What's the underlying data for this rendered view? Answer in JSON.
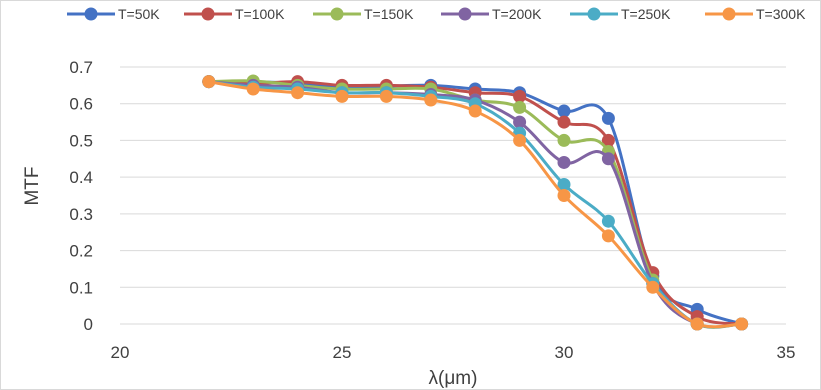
{
  "chart_data": {
    "type": "scatter",
    "xlabel": "λ(μm)",
    "ylabel": "MTF",
    "xlim": [
      20,
      35
    ],
    "ylim": [
      0,
      0.7
    ],
    "xticks": [
      20,
      25,
      30,
      35
    ],
    "yticks": [
      0,
      0.1,
      0.2,
      0.3,
      0.4,
      0.5,
      0.6,
      0.7
    ],
    "ytick_labels": [
      "0",
      "0.1",
      "0.2",
      "0.3",
      "0.4",
      "0.5",
      "0.6",
      "0.7"
    ],
    "xtick_labels": [
      "20",
      "25",
      "30",
      "35"
    ],
    "grid": "horizontal",
    "legend_position": "top",
    "x": [
      22,
      23,
      24,
      25,
      26,
      27,
      28,
      29,
      30,
      31,
      32,
      33,
      34
    ],
    "series": [
      {
        "name": "T=50K",
        "color": "#4472c4",
        "values": [
          0.66,
          0.66,
          0.655,
          0.645,
          0.648,
          0.65,
          0.64,
          0.63,
          0.58,
          0.56,
          0.13,
          0.04,
          0.0
        ]
      },
      {
        "name": "T=100K",
        "color": "#c0504d",
        "values": [
          0.66,
          0.655,
          0.66,
          0.65,
          0.65,
          0.645,
          0.63,
          0.62,
          0.55,
          0.5,
          0.14,
          0.02,
          0.0
        ]
      },
      {
        "name": "T=150K",
        "color": "#9bbb59",
        "values": [
          0.66,
          0.662,
          0.65,
          0.64,
          0.64,
          0.64,
          0.61,
          0.59,
          0.5,
          0.47,
          0.12,
          0.0,
          0.0
        ]
      },
      {
        "name": "T=200K",
        "color": "#8064a2",
        "values": [
          0.66,
          0.65,
          0.645,
          0.63,
          0.63,
          0.625,
          0.61,
          0.55,
          0.44,
          0.45,
          0.11,
          0.0,
          0.0
        ]
      },
      {
        "name": "T=250K",
        "color": "#4bacc6",
        "values": [
          0.66,
          0.645,
          0.64,
          0.63,
          0.63,
          0.62,
          0.6,
          0.52,
          0.38,
          0.28,
          0.11,
          0.0,
          0.0
        ]
      },
      {
        "name": "T=300K",
        "color": "#f79646",
        "values": [
          0.66,
          0.64,
          0.63,
          0.62,
          0.62,
          0.61,
          0.58,
          0.5,
          0.35,
          0.24,
          0.1,
          0.0,
          0.0
        ]
      }
    ]
  }
}
